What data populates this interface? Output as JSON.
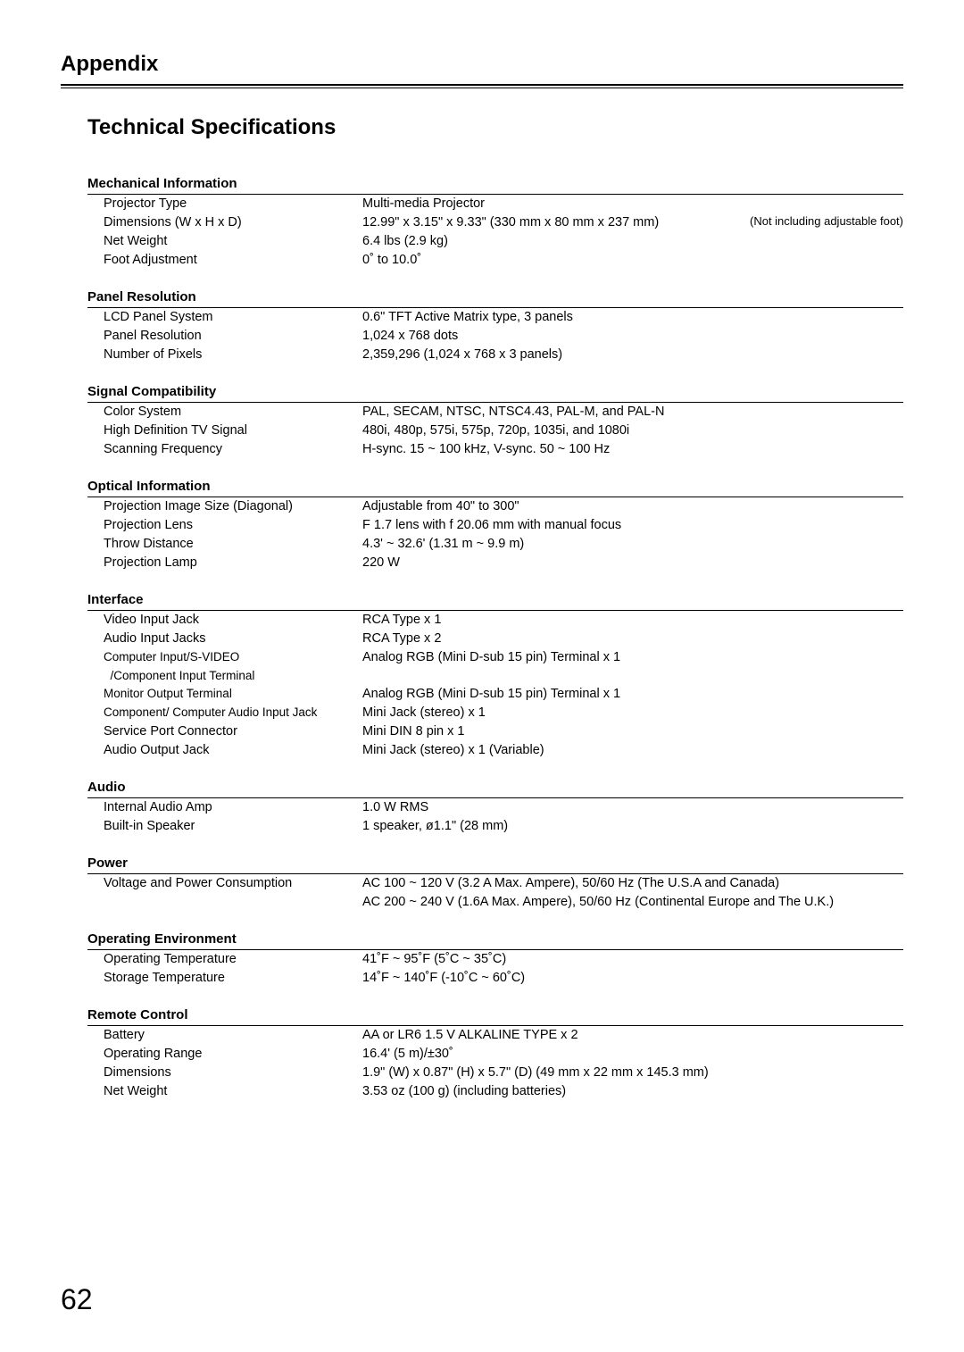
{
  "chapter": "Appendix",
  "title": "Technical Specifications",
  "sections": {
    "mechanical": {
      "head": "Mechanical Information",
      "rows": [
        {
          "label": "Projector Type",
          "value": "Multi-media Projector"
        },
        {
          "label": "Dimensions (W x H x D)",
          "value": "12.99\" x 3.15\" x 9.33\" (330 mm x 80 mm x 237 mm)",
          "note": "(Not including adjustable foot)"
        },
        {
          "label": "Net Weight",
          "value": "6.4 lbs (2.9 kg)"
        },
        {
          "label": "Foot Adjustment",
          "value": "0˚ to 10.0˚"
        }
      ]
    },
    "panel": {
      "head": "Panel Resolution",
      "rows": [
        {
          "label": "LCD Panel System",
          "value": "0.6\" TFT Active Matrix type, 3 panels"
        },
        {
          "label": "Panel Resolution",
          "value": "1,024 x 768 dots"
        },
        {
          "label": "Number of Pixels",
          "value": "2,359,296 (1,024 x 768 x 3 panels)"
        }
      ]
    },
    "signal": {
      "head": "Signal Compatibility",
      "rows": [
        {
          "label": "Color System",
          "value": "PAL, SECAM, NTSC, NTSC4.43, PAL-M, and PAL-N"
        },
        {
          "label": "High Definition TV Signal",
          "value": "480i, 480p, 575i, 575p, 720p, 1035i, and 1080i"
        },
        {
          "label": "Scanning Frequency",
          "value": "H-sync. 15 ~ 100 kHz, V-sync. 50 ~ 100 Hz"
        }
      ]
    },
    "optical": {
      "head": "Optical Information",
      "rows": [
        {
          "label": "Projection Image Size (Diagonal)",
          "value": "Adjustable from 40\" to 300\""
        },
        {
          "label": "Projection Lens",
          "value": "F 1.7 lens with f 20.06 mm with manual focus"
        },
        {
          "label": "Throw Distance",
          "value": "4.3' ~ 32.6' (1.31 m ~ 9.9 m)"
        },
        {
          "label": "Projection Lamp",
          "value": "220 W"
        }
      ]
    },
    "interface": {
      "head": "Interface",
      "rows": [
        {
          "label": "Video Input Jack",
          "value": "RCA Type x 1"
        },
        {
          "label": "Audio Input Jacks",
          "value": "RCA Type x 2"
        },
        {
          "label": "Computer Input/S-VIDEO",
          "value": "Analog RGB (Mini D-sub 15 pin) Terminal x 1"
        },
        {
          "label": "  /Component Input Terminal",
          "value": ""
        },
        {
          "label": "Monitor Output Terminal",
          "value": "Analog RGB (Mini D-sub 15 pin) Terminal x 1"
        },
        {
          "label": "Component/ Computer Audio Input Jack",
          "value": "Mini Jack (stereo) x 1"
        },
        {
          "label": "Service Port Connector",
          "value": "Mini DIN 8 pin x 1"
        },
        {
          "label": "Audio Output Jack",
          "value": "Mini Jack (stereo) x 1 (Variable)"
        }
      ]
    },
    "audio": {
      "head": "Audio",
      "rows": [
        {
          "label": "Internal Audio Amp",
          "value": "1.0 W RMS"
        },
        {
          "label": "Built-in Speaker",
          "value": "1 speaker, ø1.1\" (28 mm)"
        }
      ]
    },
    "power": {
      "head": "Power",
      "rows": [
        {
          "label": "Voltage and Power Consumption",
          "value": "AC 100 ~ 120 V (3.2 A Max. Ampere), 50/60 Hz (The U.S.A and Canada)"
        },
        {
          "label": "",
          "value": "AC 200 ~ 240 V (1.6A Max. Ampere), 50/60 Hz (Continental Europe and The U.K.)"
        }
      ]
    },
    "env": {
      "head": "Operating Environment",
      "rows": [
        {
          "label": "Operating Temperature",
          "value": "41˚F ~ 95˚F (5˚C ~ 35˚C)"
        },
        {
          "label": "Storage Temperature",
          "value": "14˚F ~ 140˚F (-10˚C ~ 60˚C)"
        }
      ]
    },
    "remote": {
      "head": "Remote Control",
      "rows": [
        {
          "label": "Battery",
          "value": "AA or LR6 1.5 V ALKALINE TYPE x 2"
        },
        {
          "label": "Operating Range",
          "value": "16.4' (5 m)/±30˚"
        },
        {
          "label": "Dimensions",
          "value": "1.9\" (W) x 0.87\" (H) x 5.7\" (D) (49 mm x 22 mm x 145.3 mm)"
        },
        {
          "label": "Net Weight",
          "value": "3.53 oz (100 g) (including batteries)"
        }
      ]
    }
  },
  "order": [
    "mechanical",
    "panel",
    "signal",
    "optical",
    "interface",
    "audio",
    "power",
    "env",
    "remote"
  ],
  "pageNumber": "62"
}
